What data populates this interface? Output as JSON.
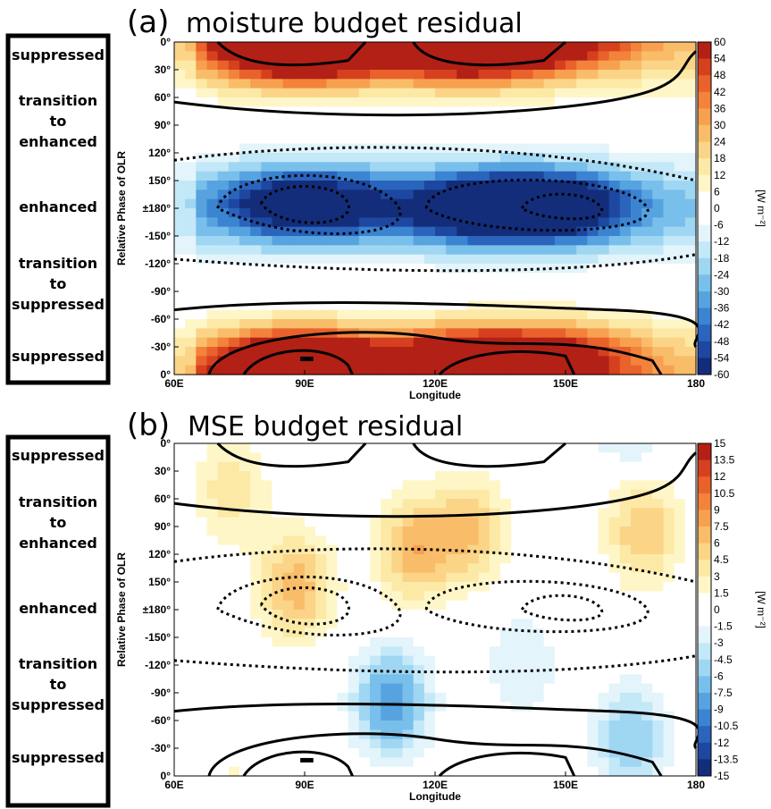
{
  "colors": {
    "positive_scale": [
      "#ffffff",
      "#fff6c8",
      "#fde9a6",
      "#fbd487",
      "#f9bd6a",
      "#f7a150",
      "#f3823b",
      "#e9612b",
      "#d6401f",
      "#b32015"
    ],
    "negative_scale": [
      "#ffffff",
      "#e3f4fb",
      "#c3e8f8",
      "#9fd6f2",
      "#79bfeb",
      "#56a3e0",
      "#3b84d1",
      "#2a64bd",
      "#1d47a0",
      "#132d7a"
    ],
    "contour_line": "#000000"
  },
  "phase_labels": [
    "suppressed",
    "transition\nto\nenhanced",
    "enhanced",
    "transition\nto\nsuppressed",
    "suppressed"
  ],
  "chart_data": [
    {
      "type": "heatmap",
      "panel": "(a)",
      "title": "moisture budget residual",
      "xlabel": "Longitude",
      "ylabel": "Relative Phase of OLR",
      "x_ticks": [
        "60E",
        "90E",
        "120E",
        "150E",
        "180"
      ],
      "x_tick_values": [
        60,
        90,
        120,
        150,
        180
      ],
      "xlim": [
        60,
        180
      ],
      "y_ticks": [
        "0°",
        "30°",
        "60°",
        "90°",
        "120°",
        "150°",
        "±180°",
        "-150°",
        "-120°",
        "-90°",
        "-60°",
        "-30°",
        "0°"
      ],
      "y_tick_values": [
        0,
        30,
        60,
        90,
        120,
        150,
        180,
        210,
        240,
        270,
        300,
        330,
        360
      ],
      "colorbar_units": "[W m⁻²]",
      "colorbar_ticks": [
        "60",
        "54",
        "48",
        "42",
        "36",
        "30",
        "24",
        "18",
        "12",
        "6",
        "0",
        "-6",
        "-12",
        "-18",
        "-24",
        "-30",
        "-36",
        "-42",
        "-48",
        "-54",
        "-60"
      ],
      "clim": [
        -60,
        60
      ],
      "shading": [
        {
          "lon": 90,
          "phase": 5,
          "value": 54
        },
        {
          "lon": 128,
          "phase": 5,
          "value": 44
        },
        {
          "lon": 90,
          "phase": 175,
          "value": -54
        },
        {
          "lon": 130,
          "phase": 180,
          "value": -45
        },
        {
          "lon": 147,
          "phase": 178,
          "value": -48
        },
        {
          "lon": 88,
          "phase": 350,
          "value": 52
        },
        {
          "lon": 128,
          "phase": 350,
          "value": 46
        },
        {
          "lon": 150,
          "phase": 345,
          "value": 40
        }
      ]
    },
    {
      "type": "heatmap",
      "panel": "(b)",
      "title": "MSE budget residual",
      "xlabel": "Longitude",
      "ylabel": "Relative Phase of OLR",
      "x_ticks": [
        "60E",
        "90E",
        "120E",
        "150E",
        "180"
      ],
      "x_tick_values": [
        60,
        90,
        120,
        150,
        180
      ],
      "xlim": [
        60,
        180
      ],
      "y_ticks": [
        "0°",
        "30°",
        "60°",
        "90°",
        "120°",
        "150°",
        "±180°",
        "-150°",
        "-120°",
        "-90°",
        "-60°",
        "-30°",
        "0°"
      ],
      "y_tick_values": [
        0,
        30,
        60,
        90,
        120,
        150,
        180,
        210,
        240,
        270,
        300,
        330,
        360
      ],
      "colorbar_units": "[W m⁻²]",
      "colorbar_ticks": [
        "15",
        "13.5",
        "12",
        "10.5",
        "9",
        "7.5",
        "6",
        "4.5",
        "3",
        "1.5",
        "0",
        "-1.5",
        "-3",
        "-4.5",
        "-6",
        "-7.5",
        "-9",
        "-10.5",
        "-12",
        "-13.5",
        "-15"
      ],
      "clim": [
        -15,
        15
      ],
      "shading": [
        {
          "lon": 88,
          "phase": 155,
          "value": 7
        },
        {
          "lon": 115,
          "phase": 115,
          "value": 7
        },
        {
          "lon": 128,
          "phase": 95,
          "value": 6
        },
        {
          "lon": 168,
          "phase": 95,
          "value": 6
        },
        {
          "lon": 73,
          "phase": 50,
          "value": 4
        },
        {
          "lon": 110,
          "phase": 280,
          "value": -9
        },
        {
          "lon": 165,
          "phase": 320,
          "value": -6
        },
        {
          "lon": 140,
          "phase": 240,
          "value": -3
        }
      ]
    }
  ]
}
